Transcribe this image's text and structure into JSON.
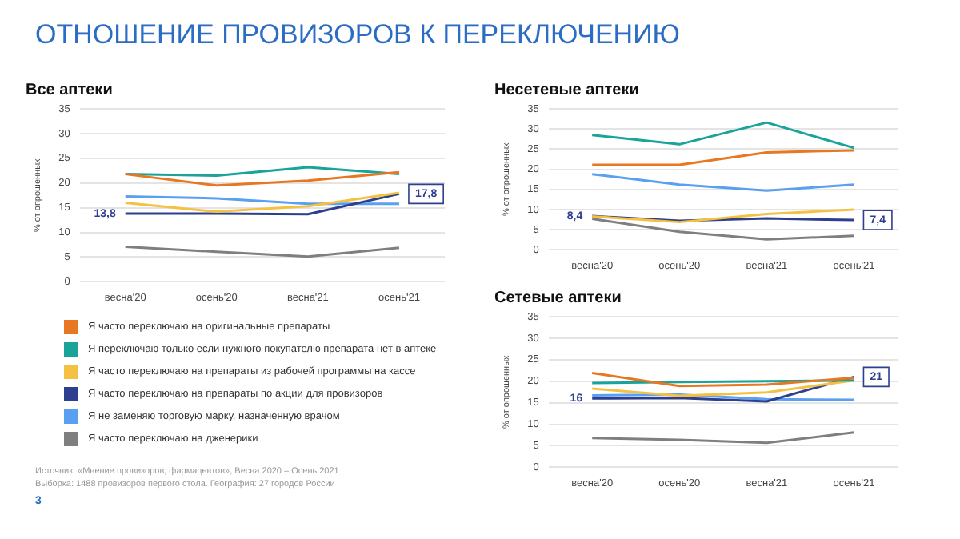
{
  "chart_data": [
    {
      "type": "line",
      "title": "ОТНОШЕНИЕ ПРОВИЗОРОВ К ПЕРЕКЛЮЧЕНИЮ",
      "subtitle": "Все аптеки",
      "ylabel": "% от опрошенных",
      "categories": [
        "весна'20",
        "осень'20",
        "весна'21",
        "осень'21"
      ],
      "ylim": [
        0,
        35
      ],
      "yticks": [
        0,
        5,
        10,
        15,
        20,
        25,
        30,
        35
      ],
      "grid": "y",
      "legend": "bottom",
      "marker": "none",
      "annotations": [
        "Источник: «Мнение провизоров, фармацевтов», Весна 2020 – Осень 2021",
        "Выборка: 1488 провизоров первого стола. География: 27 городов России",
        "3"
      ],
      "series": [
        {
          "name": "Я часто переключаю на оригинальные препараты",
          "color": "#e87722",
          "values": [
            21.8,
            19.5,
            20.5,
            22.2
          ]
        },
        {
          "name": "Я переключаю только если нужного покупателю препарата нет в аптеке",
          "color": "#1aa39a",
          "values": [
            21.8,
            21.5,
            23.2,
            21.8
          ]
        },
        {
          "name": "Я часто переключаю на препараты из рабочей программы на кассе",
          "color": "#f5c142",
          "values": [
            16,
            14.2,
            15.3,
            18
          ]
        },
        {
          "name": "Я часто переключаю на препараты по акции для провизоров",
          "color": "#2e3f8f",
          "values": [
            13.8,
            13.8,
            13.7,
            17.8
          ],
          "value_labels": [
            "13,8",
            null,
            null,
            "17,8"
          ]
        },
        {
          "name": "Я не заменяю торговую марку, назначенную врачом",
          "color": "#5aa0f0",
          "values": [
            17.3,
            16.9,
            15.8,
            15.8
          ]
        },
        {
          "name": "Я часто переключаю на дженерики",
          "color": "#7f7f7f",
          "values": [
            7.1,
            6.1,
            5.1,
            6.9
          ]
        }
      ]
    },
    {
      "type": "line",
      "title": "Несетевые аптеки",
      "ylabel": "% от опрошенных",
      "categories": [
        "весна'20",
        "осень'20",
        "весна'21",
        "осень'21"
      ],
      "ylim": [
        0,
        35
      ],
      "yticks": [
        0,
        5,
        10,
        15,
        20,
        25,
        30,
        35
      ],
      "grid": "y",
      "marker": "none",
      "series": [
        {
          "color": "#e87722",
          "values": [
            21.1,
            21.1,
            24.2,
            24.7
          ]
        },
        {
          "color": "#1aa39a",
          "values": [
            28.5,
            26.2,
            31.6,
            25.3
          ]
        },
        {
          "color": "#f5c142",
          "values": [
            8.3,
            6.9,
            8.9,
            10
          ]
        },
        {
          "color": "#2e3f8f",
          "values": [
            8.4,
            7.2,
            7.8,
            7.4
          ],
          "value_labels": [
            "8,4",
            null,
            null,
            "7,4"
          ]
        },
        {
          "color": "#5aa0f0",
          "values": [
            18.8,
            16.2,
            14.7,
            16.2
          ]
        },
        {
          "color": "#7f7f7f",
          "values": [
            7.7,
            4.5,
            2.6,
            3.5
          ]
        }
      ]
    },
    {
      "type": "line",
      "title": "Сетевые аптеки",
      "ylabel": "% от опрошенных",
      "categories": [
        "весна'20",
        "осень'20",
        "весна'21",
        "осень'21"
      ],
      "ylim": [
        0,
        35
      ],
      "yticks": [
        0,
        5,
        10,
        15,
        20,
        25,
        30,
        35
      ],
      "grid": "y",
      "marker": "none",
      "series": [
        {
          "color": "#e87722",
          "values": [
            21.9,
            18.9,
            19.2,
            20.8
          ]
        },
        {
          "color": "#1aa39a",
          "values": [
            19.6,
            19.8,
            20,
            20.2
          ]
        },
        {
          "color": "#f5c142",
          "values": [
            18.3,
            16.6,
            17.4,
            20.2
          ]
        },
        {
          "color": "#2e3f8f",
          "values": [
            16,
            16.1,
            15.3,
            21
          ],
          "value_labels": [
            "16",
            null,
            null,
            "21"
          ]
        },
        {
          "color": "#5aa0f0",
          "values": [
            16.7,
            16.9,
            15.8,
            15.7
          ]
        },
        {
          "color": "#7f7f7f",
          "values": [
            6.8,
            6.4,
            5.7,
            8.1
          ]
        }
      ]
    }
  ]
}
